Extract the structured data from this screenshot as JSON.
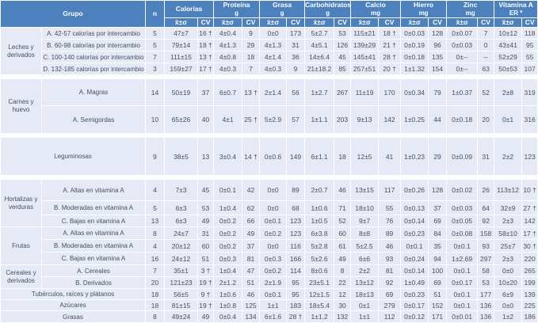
{
  "colors": {
    "header_bg": "#4d81bd",
    "row_bg": "#e6eaf6",
    "label_text": "#445060",
    "value_text": "#4a4f5c",
    "gridline": "#ffffff"
  },
  "table": {
    "header": {
      "grupo": "Grupo",
      "n": "n",
      "stat_label": "x̄±σ",
      "cv_label": "CV",
      "nutrients": [
        {
          "name": "Calorías",
          "unit": ""
        },
        {
          "name": "Proteína",
          "unit": "g"
        },
        {
          "name": "Grasa",
          "unit": "g"
        },
        {
          "name": "Carbohidratos",
          "unit": "g"
        },
        {
          "name": "Calcio",
          "unit": "mg"
        },
        {
          "name": "Hierro",
          "unit": "mg"
        },
        {
          "name": "Zinc",
          "unit": "mg"
        },
        {
          "name": "Vitamina A",
          "unit": "ER *"
        }
      ]
    },
    "sections": [
      {
        "group": "Leches y derivados",
        "rows": [
          {
            "label": "A. 42-57 calorías por intercambio",
            "n": "5",
            "values": [
              "47±7",
              "16 †",
              "4±0.4",
              "9",
              "0±0",
              "173",
              "5±2.7",
              "53",
              "115±21",
              "18 †",
              "0±0.03",
              "128",
              "0±0.07",
              "7",
              "10±12",
              "118"
            ]
          },
          {
            "label": "B. 60-98 calorías por intercambio",
            "n": "5",
            "values": [
              "79±14",
              "18 †",
              "4±1.3",
              "29",
              "4±1.3",
              "31",
              "4±5.1",
              "126",
              "139±29",
              "21 †",
              "0±0.19",
              "96",
              "0±0.03",
              "0",
              "43±41",
              "95"
            ]
          },
          {
            "label": "C. 100-140 calorías por intercambio",
            "n": "7",
            "values": [
              "111±15",
              "13 †",
              "4±0.8",
              "18",
              "4±1.4",
              "36",
              "14±6.4",
              "45",
              "145±41",
              "28 †",
              "0±0.18",
              "135",
              "0±--",
              "--",
              "52±29",
              "55"
            ]
          },
          {
            "label": "D. 132-185 calorías por intercambio",
            "n": "3",
            "values": [
              "159±27",
              "17 †",
              "4±0.3",
              "7",
              "4±0.3",
              "9",
              "21±18.2",
              "85",
              "257±51",
              "20 †",
              "1±1.32",
              "154",
              "0±--",
              "63",
              "50±53",
              "107"
            ]
          }
        ]
      },
      {
        "group": "Carnes y huevo",
        "rows": [
          {
            "label": "A. Magras",
            "n": "14",
            "values": [
              "50±19",
              "37",
              "6±0.7",
              "13 †",
              "2±1.4",
              "56",
              "1±2.7",
              "267",
              "11±19",
              "170",
              "0±0.34",
              "79",
              "1±0.37",
              "52",
              "2±8",
              "319"
            ]
          },
          {
            "label": "A. Semigordas",
            "n": "10",
            "values": [
              "65±26",
              "40",
              "4±1",
              "25 †",
              "5±2.9",
              "57",
              "1±1.1",
              "203",
              "9±13",
              "142",
              "1±0.25",
              "44",
              "0±0.18",
              "20",
              "0±1",
              "316"
            ]
          }
        ]
      },
      {
        "group": null,
        "rows": [
          {
            "label": "Leguminosas",
            "n": "9",
            "values": [
              "38±5",
              "13",
              "3±0.4",
              "14 †",
              "0±0.6",
              "149",
              "6±1.1",
              "18",
              "12±5",
              "41",
              "1±0.23",
              "29",
              "0±0.09",
              "31",
              "2±2",
              "123"
            ]
          }
        ]
      },
      {
        "group": "Hortalizas y verduras",
        "rows": [
          {
            "label": "A. Altas en vitamina A",
            "n": "4",
            "values": [
              "7±3",
              "45",
              "0±0.1",
              "42",
              "0±0",
              "89",
              "2±0.7",
              "46",
              "13±15",
              "117",
              "0±0.26",
              "128",
              "0±0.02",
              "26",
              "113±12",
              "10 †"
            ]
          },
          {
            "label": "B. Moderadas en vitamina A",
            "n": "5",
            "values": [
              "6±3",
              "53",
              "1±0.4",
              "62",
              "0±0",
              "68",
              "1±0.6",
              "71",
              "18±10",
              "55",
              "0±0.13",
              "37",
              "0±0.03",
              "64",
              "32±9",
              "27 †"
            ]
          },
          {
            "label": "C. Bajas en vitamina A",
            "n": "13",
            "values": [
              "6±3",
              "49",
              "0±0.2",
              "66",
              "0±0.1",
              "123",
              "1±0.5",
              "52",
              "9±7",
              "76",
              "0±0.14",
              "69",
              "0±0.05",
              "92",
              "2±3",
              "142"
            ]
          }
        ]
      },
      {
        "group": "Frutas",
        "rows": [
          {
            "label": "A. Altas en vitamina A",
            "n": "8",
            "values": [
              "24±7",
              "31",
              "0±0.2",
              "49",
              "0±0.2",
              "123",
              "6±3.8",
              "60",
              "8±8",
              "89",
              "0±0.23",
              "84",
              "0±0.08",
              "158",
              "58±10",
              "17 †"
            ]
          },
          {
            "label": "B. Moderadas en vitamina A",
            "n": "4",
            "values": [
              "20±12",
              "60",
              "0±0.2",
              "37",
              "0±0",
              "116",
              "5±2.8",
              "61",
              "5±2.5",
              "46",
              "0±0.1",
              "35",
              "0±0.1",
              "93",
              "25±7",
              "30 †"
            ]
          },
          {
            "label": "C. Bajas en vitamina A",
            "n": "16",
            "values": [
              "24±12",
              "51",
              "0±0.3",
              "81",
              "0±0.3",
              "166",
              "5±2.6",
              "49",
              "6±6",
              "93",
              "0±0.24",
              "94",
              "1±2.69",
              "297",
              "2±3",
              "220"
            ]
          }
        ]
      },
      {
        "group": "Cereales y derivados",
        "rows": [
          {
            "label": "A. Cereales",
            "n": "7",
            "values": [
              "35±1",
              "3 †",
              "1±0.4",
              "47",
              "0±0.2",
              "114",
              "8±0.6",
              "8",
              "2±2",
              "81",
              "0±0.14",
              "100",
              "0±0.1",
              "58",
              "0±0",
              "265"
            ]
          },
          {
            "label": "B. Derivados",
            "n": "20",
            "values": [
              "121±23",
              "19 †",
              "2±1.2",
              "51",
              "2±1.9",
              "95",
              "23±5.1",
              "22",
              "13±12",
              "92",
              "1±0.49",
              "69",
              "0±0.17",
              "53",
              "10±20",
              "199"
            ]
          }
        ]
      },
      {
        "group": null,
        "rows": [
          {
            "label": "Tubérculos, raíces y plátanos",
            "n": "18",
            "values": [
              "56±5",
              "9 †",
              "1±0.6",
              "46",
              "0±0.1",
              "95",
              "12±1.5",
              "12",
              "18±13",
              "69",
              "0±0.23",
              "51",
              "0±0.1",
              "177",
              "6±9",
              "139"
            ]
          }
        ]
      },
      {
        "group": null,
        "rows": [
          {
            "label": "Azúcares",
            "n": "18",
            "values": [
              "81±15",
              "19 †",
              "1±0.8",
              "125",
              "1±1",
              "183",
              "18±5.4",
              "30",
              "0±1",
              "279",
              "0±0.17",
              "152",
              "0±0.1",
              "136",
              "0±0",
              "225"
            ]
          }
        ]
      },
      {
        "group": null,
        "rows": [
          {
            "label": "Grasas",
            "n": "8",
            "values": [
              "49±24",
              "49",
              "0±0.4",
              "134",
              "6±1.6",
              "28 †",
              "1±1.2",
              "132",
              "1±1",
              "112",
              "0±0.12",
              "171",
              "0±0.01",
              "136",
              "1±2",
              "186"
            ]
          }
        ]
      }
    ]
  }
}
